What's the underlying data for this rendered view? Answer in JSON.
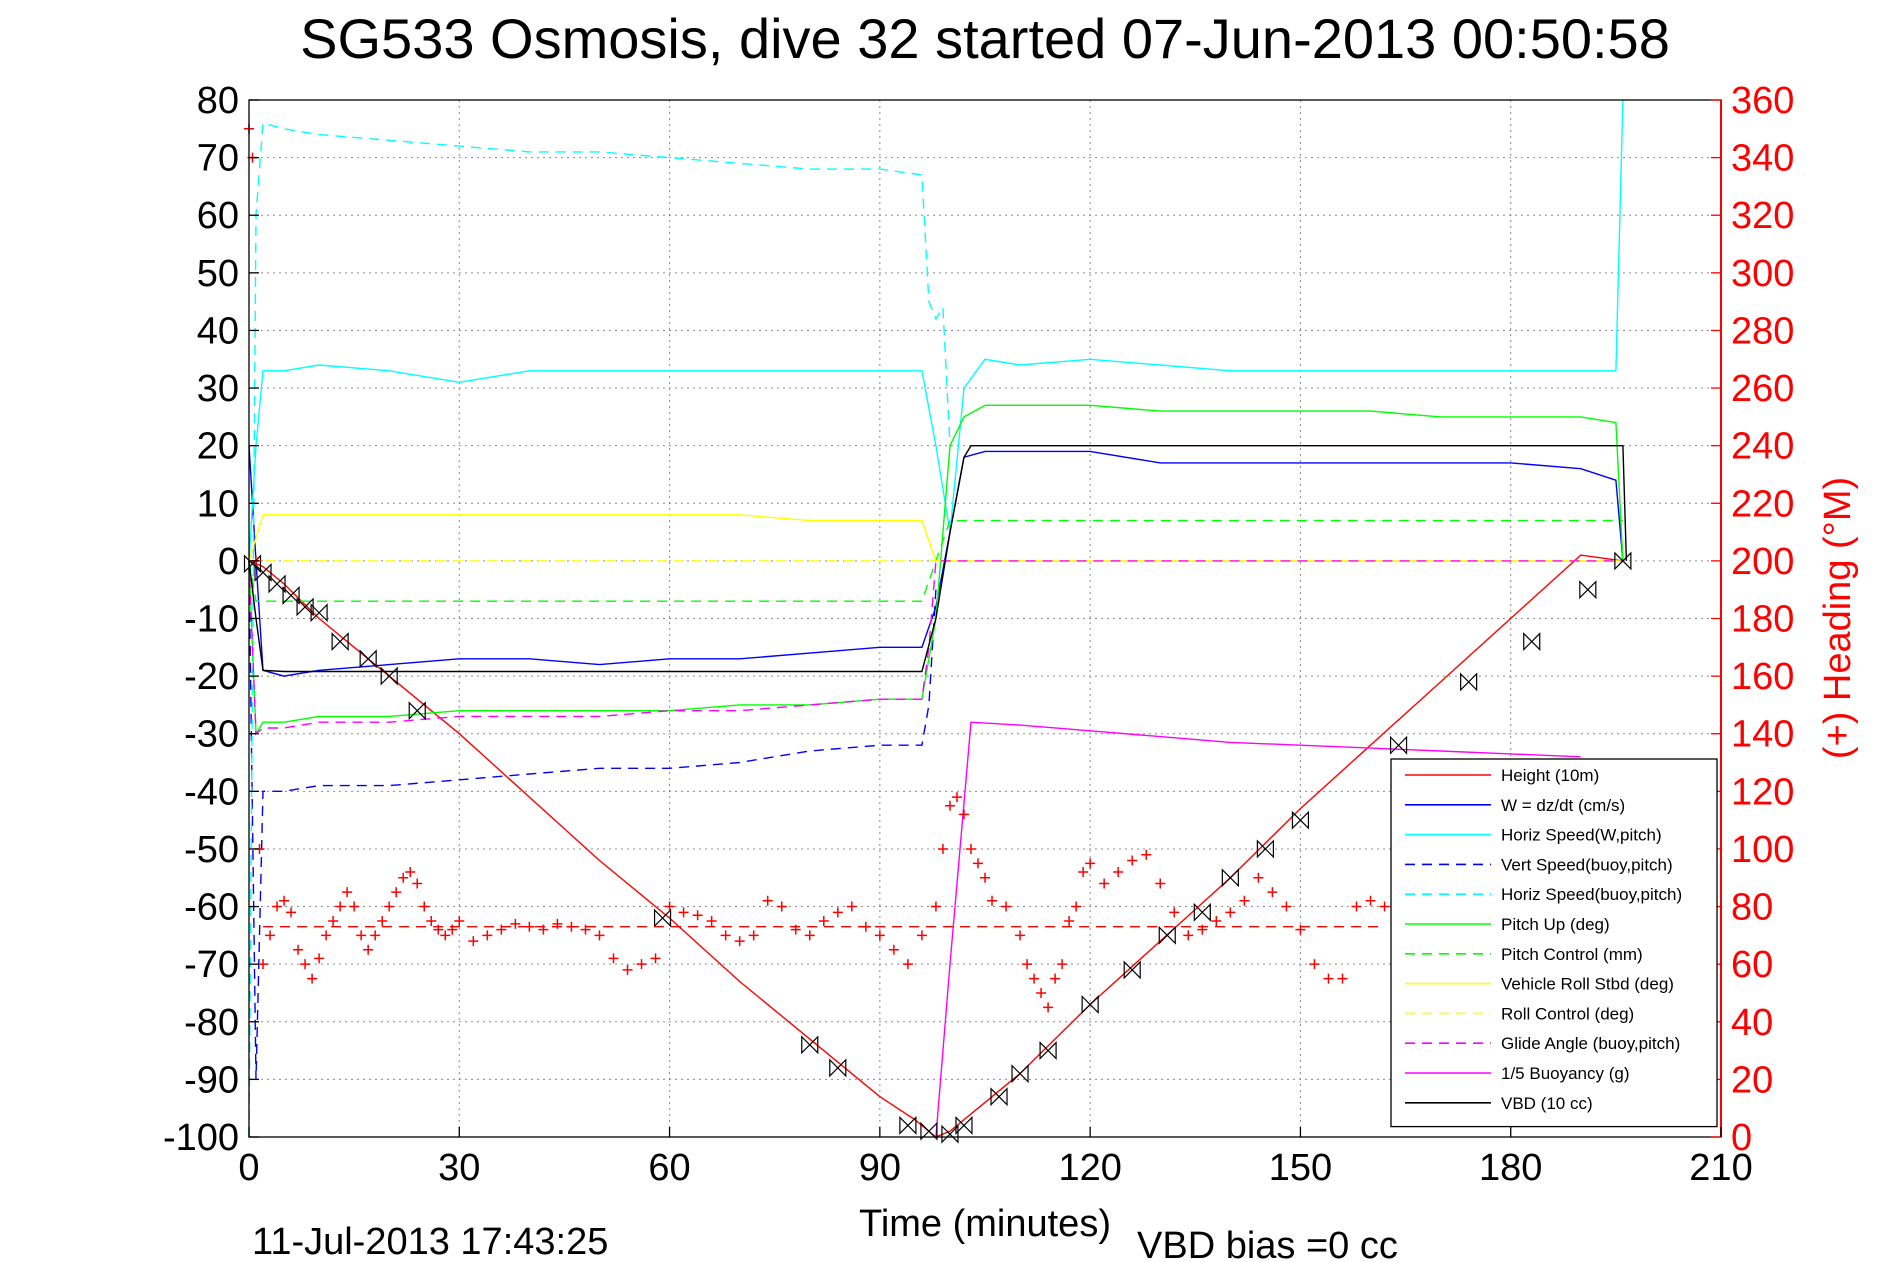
{
  "chart_data": {
    "type": "line",
    "title": "SG533 Osmosis, dive 32 started 07-Jun-2013 00:50:58",
    "xlabel": "Time (minutes)",
    "ylabel": "",
    "y2label": "(+) Heading (°M)",
    "footer_left": "11-Jul-2013 17:43:25",
    "footer_right": "VBD bias =0 cc",
    "xlim": [
      0,
      210
    ],
    "ylim": [
      -100,
      80
    ],
    "y2lim": [
      0,
      360
    ],
    "xticks": [
      "0",
      "30",
      "60",
      "90",
      "120",
      "150",
      "180",
      "210"
    ],
    "yticks": [
      "80",
      "70",
      "60",
      "50",
      "40",
      "30",
      "20",
      "10",
      "0",
      "-10",
      "-20",
      "-30",
      "-40",
      "-50",
      "-60",
      "-70",
      "-80",
      "-90",
      "-100"
    ],
    "y2ticks": [
      "360",
      "340",
      "320",
      "300",
      "280",
      "260",
      "240",
      "220",
      "200",
      "180",
      "160",
      "140",
      "120",
      "100",
      "80",
      "60",
      "40",
      "20",
      "0"
    ],
    "grid": true,
    "legend_position": "bottom-right",
    "colors": {
      "height": "#ff0000",
      "w": "#0000ff",
      "horiz": "#00ffff",
      "pitch": "#00ff00",
      "roll": "#ffff00",
      "glide": "#ff00ff",
      "buoyancy": "#ff00ff",
      "vbd": "#000000",
      "heading": "#ff0000",
      "right_axis": "#ff0000"
    },
    "legend": [
      {
        "name": "Height (10m)",
        "color": "#ff0000",
        "dash": "solid"
      },
      {
        "name": "W = dz/dt (cm/s)",
        "color": "#0000ff",
        "dash": "solid"
      },
      {
        "name": "Horiz Speed(W,pitch)",
        "color": "#00ffff",
        "dash": "solid"
      },
      {
        "name": "Vert Speed(buoy,pitch)",
        "color": "#0000ff",
        "dash": "dashed"
      },
      {
        "name": "Horiz Speed(buoy,pitch)",
        "color": "#00ffff",
        "dash": "dashed"
      },
      {
        "name": "Pitch Up (deg)",
        "color": "#00ff00",
        "dash": "solid"
      },
      {
        "name": "Pitch Control (mm)",
        "color": "#00ff00",
        "dash": "dashed"
      },
      {
        "name": "Vehicle Roll Stbd (deg)",
        "color": "#ffff00",
        "dash": "solid"
      },
      {
        "name": "Roll Control (deg)",
        "color": "#ffff00",
        "dash": "dashed"
      },
      {
        "name": "Glide Angle (buoy,pitch)",
        "color": "#ff00ff",
        "dash": "dashed"
      },
      {
        "name": "1/5 Buoyancy (g)",
        "color": "#ff00ff",
        "dash": "solid"
      },
      {
        "name": "VBD (10 cc)",
        "color": "#000000",
        "dash": "solid"
      }
    ],
    "series": [
      {
        "name": "Height (10m)",
        "x": [
          0,
          2,
          5,
          10,
          20,
          30,
          40,
          50,
          60,
          70,
          80,
          90,
          95,
          98,
          100,
          105,
          110,
          120,
          130,
          140,
          150,
          160,
          170,
          180,
          190,
          196
        ],
        "y": [
          0,
          -1,
          -4,
          -10,
          -20,
          -30,
          -41,
          -52,
          -62,
          -73,
          -83,
          -93,
          -97,
          -100,
          -99,
          -94,
          -89,
          -77,
          -66,
          -55,
          -43,
          -32,
          -21,
          -10,
          1,
          0
        ]
      },
      {
        "name": "W = dz/dt (cm/s)",
        "x": [
          0,
          1,
          2,
          5,
          10,
          20,
          30,
          40,
          50,
          60,
          70,
          80,
          90,
          96,
          98,
          100,
          102,
          105,
          110,
          120,
          130,
          140,
          150,
          160,
          170,
          180,
          190,
          195,
          196
        ],
        "y": [
          20,
          0,
          -19,
          -20,
          -19,
          -18,
          -17,
          -17,
          -18,
          -17,
          -17,
          -16,
          -15,
          -15,
          -8,
          5,
          18,
          19,
          19,
          19,
          17,
          17,
          17,
          17,
          17,
          17,
          16,
          14,
          0
        ]
      },
      {
        "name": "Horiz Speed(W,pitch)",
        "x": [
          0,
          1,
          2,
          5,
          10,
          20,
          30,
          40,
          50,
          60,
          70,
          80,
          90,
          96,
          98,
          100,
          102,
          105,
          110,
          120,
          130,
          140,
          150,
          160,
          170,
          180,
          190,
          195,
          196
        ],
        "y": [
          0,
          20,
          33,
          33,
          34,
          33,
          31,
          33,
          33,
          33,
          33,
          33,
          33,
          33,
          20,
          5,
          30,
          35,
          34,
          35,
          34,
          33,
          33,
          33,
          33,
          33,
          33,
          33,
          80
        ]
      },
      {
        "name": "Vert Speed(buoy,pitch)",
        "x": [
          0,
          1,
          2,
          5,
          10,
          20,
          30,
          40,
          50,
          60,
          70,
          80,
          90,
          96,
          97,
          98
        ],
        "y": [
          0,
          -90,
          -40,
          -40,
          -39,
          -39,
          -38,
          -37,
          -36,
          -36,
          -35,
          -33,
          -32,
          -32,
          -25,
          -5
        ]
      },
      {
        "name": "Horiz Speed(buoy,pitch)",
        "x": [
          0,
          1,
          2,
          5,
          10,
          20,
          30,
          40,
          50,
          60,
          70,
          80,
          90,
          96,
          97,
          98,
          99,
          100
        ],
        "y": [
          -100,
          60,
          76,
          75,
          74,
          73,
          72,
          71,
          71,
          70,
          69,
          68,
          68,
          67,
          45,
          42,
          44,
          20
        ]
      },
      {
        "name": "Pitch Up (deg)",
        "x": [
          0,
          1,
          2,
          5,
          10,
          20,
          30,
          40,
          50,
          60,
          70,
          80,
          90,
          96,
          98,
          100,
          102,
          105,
          110,
          120,
          130,
          140,
          150,
          160,
          170,
          180,
          190,
          195,
          196
        ],
        "y": [
          0,
          -30,
          -28,
          -28,
          -27,
          -27,
          -26,
          -26,
          -26,
          -26,
          -25,
          -25,
          -24,
          -24,
          -10,
          20,
          25,
          27,
          27,
          27,
          26,
          26,
          26,
          26,
          25,
          25,
          25,
          24,
          0
        ]
      },
      {
        "name": "Pitch Control (mm)",
        "x": [
          0,
          1,
          2,
          20,
          40,
          60,
          80,
          96,
          98,
          100,
          102,
          120,
          140,
          160,
          180,
          196
        ],
        "y": [
          0,
          -7,
          -7,
          -7,
          -7,
          -7,
          -7,
          -7,
          0,
          7,
          7,
          7,
          7,
          7,
          7,
          7
        ]
      },
      {
        "name": "Vehicle Roll Stbd (deg)",
        "x": [
          0,
          2,
          5,
          10,
          20,
          30,
          40,
          50,
          60,
          70,
          80,
          90,
          96,
          98,
          100,
          102,
          110,
          120,
          130,
          140,
          150,
          160,
          170,
          180,
          190,
          196
        ],
        "y": [
          0,
          8,
          8,
          8,
          8,
          8,
          8,
          8,
          8,
          8,
          7,
          7,
          7,
          0,
          0,
          0,
          0,
          0,
          0,
          0,
          0,
          0,
          0,
          0,
          0,
          0
        ]
      },
      {
        "name": "Roll Control (deg)",
        "x": [
          0,
          2,
          5,
          10,
          20,
          30,
          40,
          50,
          60,
          70,
          80,
          90,
          96,
          98,
          100,
          102,
          110,
          120,
          130,
          140,
          150,
          160,
          170,
          180,
          190,
          196
        ],
        "y": [
          0,
          0,
          0,
          0,
          0,
          0,
          0,
          0,
          0,
          0,
          0,
          0,
          0,
          0,
          0,
          0,
          0,
          0,
          0,
          0,
          0,
          0,
          0,
          0,
          0,
          0
        ]
      },
      {
        "name": "Glide Angle (buoy,pitch)",
        "x": [
          0,
          1,
          2,
          5,
          10,
          20,
          30,
          40,
          50,
          60,
          70,
          80,
          90,
          96,
          97,
          98,
          100,
          110,
          120,
          130,
          140,
          150,
          160,
          170,
          180,
          190,
          196
        ],
        "y": [
          0,
          -30,
          -29,
          -29,
          -28,
          -28,
          -27,
          -27,
          -27,
          -26,
          -26,
          -25,
          -24,
          -24,
          -15,
          0,
          0,
          0,
          0,
          0,
          0,
          0,
          0,
          0,
          0,
          0,
          0
        ]
      },
      {
        "name": "1/5 Buoyancy (g)",
        "x": [
          98,
          100,
          103,
          110,
          120,
          130,
          140,
          150,
          160,
          170,
          180,
          190
        ],
        "y": [
          -100,
          -70,
          -28,
          -28.5,
          -29.5,
          -30.5,
          -31.5,
          -32,
          -32.5,
          -33,
          -33.5,
          -34
        ]
      },
      {
        "name": "VBD (10 cc)",
        "x": [
          0,
          1,
          2,
          5,
          20,
          40,
          60,
          80,
          96,
          98,
          100,
          102,
          103,
          120,
          140,
          160,
          180,
          196,
          196.5
        ],
        "y": [
          0,
          -10,
          -19,
          -19.2,
          -19.2,
          -19.2,
          -19.2,
          -19.2,
          -19.2,
          -10,
          5,
          18,
          20,
          20,
          20,
          20,
          20,
          20,
          0
        ]
      }
    ],
    "heading_points": {
      "name": "Heading",
      "axis": "right",
      "x": [
        0,
        0.5,
        1,
        1.5,
        2,
        3,
        4,
        5,
        6,
        7,
        8,
        9,
        10,
        11,
        12,
        13,
        14,
        15,
        16,
        17,
        18,
        19,
        20,
        21,
        22,
        23,
        24,
        25,
        26,
        27,
        28,
        29,
        30,
        32,
        34,
        36,
        38,
        40,
        42,
        44,
        46,
        48,
        50,
        52,
        54,
        56,
        58,
        60,
        62,
        64,
        66,
        68,
        70,
        72,
        74,
        76,
        78,
        80,
        82,
        84,
        86,
        88,
        90,
        92,
        94,
        96,
        98,
        99,
        100,
        101,
        102,
        103,
        104,
        105,
        106,
        108,
        110,
        111,
        112,
        113,
        114,
        115,
        116,
        117,
        118,
        119,
        120,
        122,
        124,
        126,
        128,
        130,
        132,
        134,
        136,
        138,
        140,
        142,
        144,
        146,
        148,
        150,
        152,
        154,
        156,
        158,
        160,
        162
      ],
      "y": [
        350,
        340,
        200,
        100,
        60,
        70,
        80,
        82,
        78,
        65,
        60,
        55,
        62,
        70,
        75,
        80,
        85,
        80,
        70,
        65,
        70,
        75,
        80,
        85,
        90,
        92,
        88,
        80,
        75,
        72,
        70,
        72,
        75,
        68,
        70,
        72,
        74,
        73,
        72,
        74,
        73,
        72,
        70,
        62,
        58,
        60,
        62,
        80,
        78,
        77,
        75,
        70,
        68,
        70,
        82,
        80,
        72,
        70,
        75,
        78,
        80,
        73,
        70,
        65,
        60,
        70,
        80,
        100,
        115,
        118,
        112,
        100,
        95,
        90,
        82,
        80,
        70,
        60,
        55,
        50,
        45,
        55,
        60,
        75,
        80,
        92,
        95,
        88,
        92,
        96,
        98,
        88,
        78,
        70,
        72,
        75,
        78,
        82,
        90,
        85,
        80,
        72,
        60,
        55,
        55,
        80,
        82,
        80
      ]
    },
    "heading_mean": {
      "name": "Heading mean",
      "axis": "right",
      "value": 73
    },
    "waypoint_markers": {
      "x": [
        0.5,
        2,
        4,
        6,
        8,
        10,
        13,
        17,
        20,
        24,
        59,
        80,
        84,
        94,
        97,
        100,
        102,
        107,
        110,
        114,
        120,
        126,
        131,
        136,
        140,
        145,
        150,
        164,
        174,
        183,
        191,
        196
      ],
      "y": [
        -0.5,
        -2,
        -4,
        -6,
        -8,
        -9,
        -14,
        -17,
        -20,
        -26,
        -62,
        -84,
        -88,
        -98,
        -99,
        -99.5,
        -98,
        -93,
        -89,
        -85,
        -77,
        -71,
        -65,
        -61,
        -55,
        -50,
        -45,
        -32,
        -21,
        -14,
        -5,
        0
      ]
    }
  }
}
